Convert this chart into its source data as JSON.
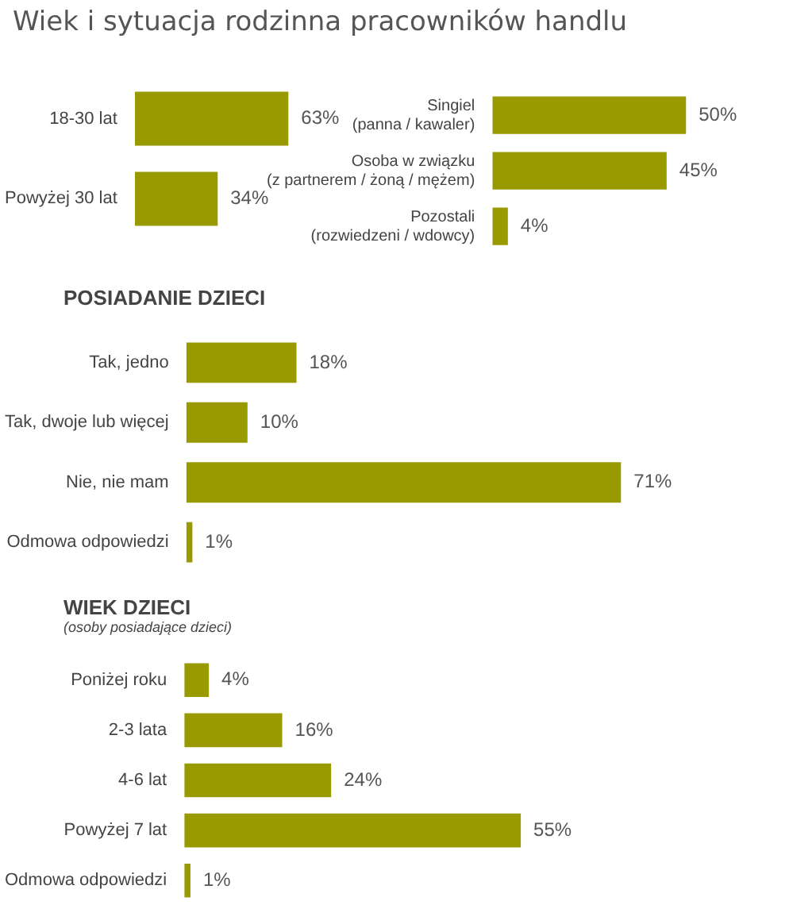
{
  "chart_data": [
    {
      "type": "bar",
      "orientation": "horizontal",
      "title": "Wiek i sytuacja rodzinna pracowników handlu",
      "categories": [
        "18-30 lat",
        "Powyżej 30 lat"
      ],
      "values": [
        63,
        34
      ],
      "value_labels": [
        "63%",
        "34%"
      ],
      "color": "#999900",
      "legend": false
    },
    {
      "type": "bar",
      "orientation": "horizontal",
      "categories": [
        "Singiel\n(panna / kawaler)",
        "Osoba w związku\n(z partnerem / żoną / mężem)",
        "Pozostali\n(rozwiedzeni / wdowcy)"
      ],
      "values": [
        50,
        45,
        4
      ],
      "value_labels": [
        "50%",
        "45%",
        "4%"
      ],
      "color": "#999900",
      "legend": false
    },
    {
      "type": "bar",
      "orientation": "horizontal",
      "title": "POSIADANIE DZIECI",
      "categories": [
        "Tak, jedno",
        "Tak, dwoje lub więcej",
        "Nie, nie mam",
        "Odmowa odpowiedzi"
      ],
      "values": [
        18,
        10,
        71,
        1
      ],
      "value_labels": [
        "18%",
        "10%",
        "71%",
        "1%"
      ],
      "color": "#999900",
      "legend": false
    },
    {
      "type": "bar",
      "orientation": "horizontal",
      "title": "WIEK DZIECI",
      "subtitle": "(osoby posiadające dzieci)",
      "categories": [
        "Poniżej roku",
        "2-3 lata",
        "4-6 lat",
        "Powyżej 7 lat",
        "Odmowa odpowiedzi"
      ],
      "values": [
        4,
        16,
        24,
        55,
        1
      ],
      "value_labels": [
        "4%",
        "16%",
        "24%",
        "55%",
        "1%"
      ],
      "color": "#999900",
      "legend": false
    }
  ]
}
